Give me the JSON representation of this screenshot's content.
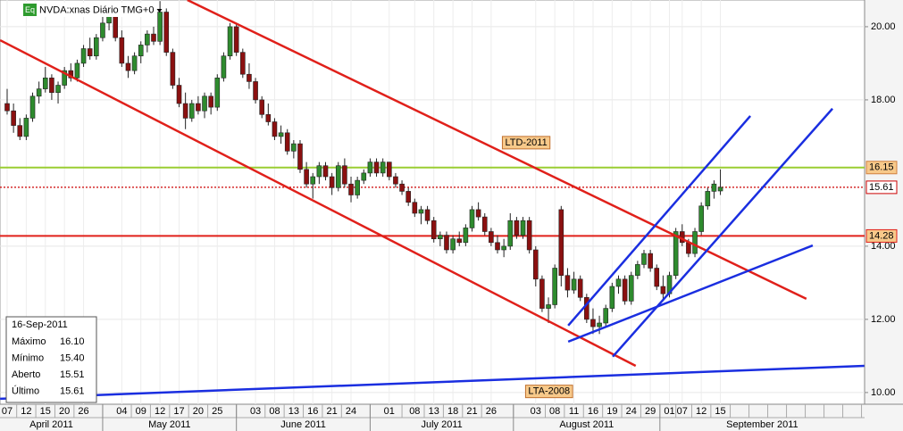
{
  "chart_data": {
    "type": "candlestick",
    "title": "NVDA:xnas Diário TMG+0",
    "badge": "Eq",
    "up_color": "#2e8b2e",
    "down_color": "#8b1010",
    "ylim": [
      9.68,
      20.73
    ],
    "yticks": [
      {
        "value": 10,
        "label": "10.00"
      },
      {
        "value": 12,
        "label": "12.00"
      },
      {
        "value": 14,
        "label": "14.00"
      },
      {
        "value": 18,
        "label": "18.00"
      },
      {
        "value": 20,
        "label": "20.00"
      }
    ],
    "grid": true,
    "categories": [
      "07",
      null,
      null,
      "12",
      null,
      null,
      "15",
      null,
      null,
      "20",
      null,
      null,
      "26",
      null,
      null,
      null,
      null,
      null,
      "04",
      null,
      null,
      "09",
      null,
      null,
      "12",
      null,
      null,
      "17",
      null,
      null,
      "20",
      null,
      null,
      "25",
      null,
      null,
      null,
      null,
      null,
      "03",
      null,
      null,
      "08",
      null,
      null,
      "13",
      null,
      null,
      "16",
      null,
      null,
      "21",
      null,
      null,
      "24",
      null,
      null,
      null,
      null,
      null,
      "01",
      null,
      null,
      null,
      "08",
      null,
      null,
      "13",
      null,
      null,
      "18",
      null,
      null,
      "21",
      null,
      null,
      "26",
      null,
      null,
      null,
      null,
      null,
      null,
      "03",
      null,
      null,
      "08",
      null,
      null,
      "11",
      null,
      null,
      "16",
      null,
      null,
      "19",
      null,
      null,
      "24",
      null,
      null,
      "29",
      null,
      null,
      "01",
      null,
      "07",
      null,
      null,
      "12",
      null,
      null,
      "15",
      null
    ],
    "months": [
      "April 2011",
      "May 2011",
      "June 2011",
      "July 2011",
      "August 2011",
      "September 2011"
    ],
    "ohlc": [
      [
        17.9,
        18.3,
        17.6,
        17.7
      ],
      [
        17.7,
        17.9,
        17.1,
        17.3
      ],
      [
        17.3,
        17.5,
        16.9,
        17.0
      ],
      [
        17.0,
        17.6,
        16.9,
        17.5
      ],
      [
        17.5,
        18.2,
        17.4,
        18.1
      ],
      [
        18.1,
        18.5,
        17.9,
        18.3
      ],
      [
        18.3,
        18.9,
        18.2,
        18.6
      ],
      [
        18.6,
        18.7,
        18.0,
        18.2
      ],
      [
        18.2,
        18.5,
        17.9,
        18.4
      ],
      [
        18.4,
        18.9,
        18.3,
        18.8
      ],
      [
        18.8,
        19.0,
        18.5,
        18.6
      ],
      [
        18.6,
        19.1,
        18.5,
        19.0
      ],
      [
        19.0,
        19.5,
        18.9,
        19.4
      ],
      [
        19.4,
        19.7,
        19.1,
        19.2
      ],
      [
        19.2,
        19.8,
        19.1,
        19.7
      ],
      [
        19.7,
        20.3,
        19.6,
        20.1
      ],
      [
        20.1,
        20.6,
        19.9,
        20.3
      ],
      [
        20.3,
        20.5,
        19.6,
        19.7
      ],
      [
        19.7,
        19.9,
        18.9,
        19.0
      ],
      [
        19.0,
        19.2,
        18.6,
        18.8
      ],
      [
        18.8,
        19.3,
        18.7,
        19.2
      ],
      [
        19.2,
        19.6,
        19.0,
        19.5
      ],
      [
        19.5,
        19.9,
        19.3,
        19.8
      ],
      [
        19.8,
        20.0,
        19.5,
        19.6
      ],
      [
        19.6,
        20.7,
        19.5,
        20.4
      ],
      [
        20.4,
        20.5,
        19.2,
        19.3
      ],
      [
        19.3,
        19.4,
        18.3,
        18.4
      ],
      [
        18.4,
        18.6,
        17.8,
        17.9
      ],
      [
        17.9,
        18.2,
        17.2,
        17.5
      ],
      [
        17.5,
        18.0,
        17.4,
        17.9
      ],
      [
        17.9,
        18.1,
        17.6,
        17.7
      ],
      [
        17.7,
        18.2,
        17.5,
        18.1
      ],
      [
        18.1,
        18.2,
        17.6,
        17.8
      ],
      [
        17.8,
        18.7,
        17.7,
        18.6
      ],
      [
        18.6,
        19.3,
        18.5,
        19.2
      ],
      [
        19.2,
        20.1,
        19.1,
        20.0
      ],
      [
        20.0,
        20.1,
        19.2,
        19.3
      ],
      [
        19.3,
        19.4,
        18.6,
        18.7
      ],
      [
        18.7,
        19.0,
        18.3,
        18.5
      ],
      [
        18.5,
        18.6,
        17.9,
        18.0
      ],
      [
        18.0,
        18.1,
        17.5,
        17.6
      ],
      [
        17.6,
        17.9,
        17.3,
        17.4
      ],
      [
        17.4,
        17.5,
        16.9,
        17.0
      ],
      [
        17.0,
        17.3,
        16.8,
        17.1
      ],
      [
        17.1,
        17.2,
        16.5,
        16.6
      ],
      [
        16.6,
        16.9,
        16.4,
        16.8
      ],
      [
        16.8,
        16.9,
        16.0,
        16.1
      ],
      [
        16.1,
        16.3,
        15.6,
        15.7
      ],
      [
        15.7,
        16.0,
        15.3,
        15.9
      ],
      [
        15.9,
        16.3,
        15.7,
        16.2
      ],
      [
        16.2,
        16.3,
        15.8,
        15.9
      ],
      [
        15.9,
        16.0,
        15.4,
        15.6
      ],
      [
        15.6,
        16.3,
        15.5,
        16.2
      ],
      [
        16.2,
        16.4,
        15.6,
        15.7
      ],
      [
        15.7,
        15.9,
        15.2,
        15.4
      ],
      [
        15.4,
        15.9,
        15.3,
        15.8
      ],
      [
        15.8,
        16.1,
        15.7,
        16.0
      ],
      [
        16.0,
        16.4,
        15.9,
        16.3
      ],
      [
        16.3,
        16.4,
        15.9,
        16.0
      ],
      [
        16.0,
        16.4,
        15.9,
        16.3
      ],
      [
        16.3,
        16.3,
        15.8,
        15.9
      ],
      [
        15.9,
        16.0,
        15.6,
        15.7
      ],
      [
        15.7,
        15.8,
        15.4,
        15.5
      ],
      [
        15.5,
        15.6,
        15.1,
        15.2
      ],
      [
        15.2,
        15.3,
        14.8,
        14.9
      ],
      [
        14.9,
        15.1,
        14.6,
        15.0
      ],
      [
        15.0,
        15.1,
        14.6,
        14.7
      ],
      [
        14.7,
        14.8,
        14.1,
        14.2
      ],
      [
        14.2,
        14.4,
        14.0,
        14.3
      ],
      [
        14.3,
        14.4,
        13.8,
        13.9
      ],
      [
        13.9,
        14.3,
        13.8,
        14.2
      ],
      [
        14.2,
        14.4,
        14.0,
        14.1
      ],
      [
        14.1,
        14.6,
        14.0,
        14.5
      ],
      [
        14.5,
        15.1,
        14.4,
        15.0
      ],
      [
        15.0,
        15.2,
        14.7,
        14.8
      ],
      [
        14.8,
        14.9,
        14.3,
        14.4
      ],
      [
        14.4,
        14.5,
        14.0,
        14.1
      ],
      [
        14.1,
        14.3,
        13.8,
        13.9
      ],
      [
        13.9,
        14.2,
        13.7,
        14.0
      ],
      [
        14.0,
        14.9,
        13.9,
        14.7
      ],
      [
        14.7,
        14.8,
        14.2,
        14.3
      ],
      [
        14.3,
        14.8,
        14.2,
        14.7
      ],
      [
        14.7,
        14.8,
        13.8,
        13.9
      ],
      [
        13.9,
        14.0,
        12.9,
        13.1
      ],
      [
        13.1,
        13.2,
        12.2,
        12.3
      ],
      [
        12.3,
        12.6,
        11.9,
        12.4
      ],
      [
        12.4,
        13.5,
        12.3,
        13.4
      ],
      [
        15.0,
        15.1,
        12.9,
        13.2
      ],
      [
        13.2,
        13.4,
        12.6,
        12.8
      ],
      [
        12.8,
        13.3,
        12.7,
        13.1
      ],
      [
        13.1,
        13.2,
        12.5,
        12.6
      ],
      [
        12.6,
        12.7,
        11.9,
        12.0
      ],
      [
        12.0,
        12.3,
        11.6,
        11.8
      ],
      [
        11.8,
        12.1,
        11.6,
        11.9
      ],
      [
        11.9,
        12.4,
        11.8,
        12.3
      ],
      [
        12.3,
        13.0,
        12.2,
        12.9
      ],
      [
        12.9,
        13.2,
        12.7,
        13.1
      ],
      [
        13.1,
        13.2,
        12.4,
        12.5
      ],
      [
        12.5,
        13.3,
        12.4,
        13.2
      ],
      [
        13.2,
        13.6,
        13.1,
        13.5
      ],
      [
        13.5,
        13.9,
        13.4,
        13.8
      ],
      [
        13.8,
        13.9,
        13.3,
        13.4
      ],
      [
        13.4,
        13.5,
        12.8,
        12.9
      ],
      [
        12.9,
        13.2,
        12.5,
        12.7
      ],
      [
        12.7,
        13.3,
        12.6,
        13.2
      ],
      [
        13.2,
        14.5,
        13.1,
        14.4
      ],
      [
        14.4,
        14.6,
        14.0,
        14.1
      ],
      [
        14.1,
        14.2,
        13.7,
        13.8
      ],
      [
        13.8,
        14.5,
        13.7,
        14.4
      ],
      [
        14.4,
        15.2,
        14.3,
        15.1
      ],
      [
        15.1,
        15.6,
        15.0,
        15.5
      ],
      [
        15.5,
        15.8,
        15.3,
        15.7
      ],
      [
        15.51,
        16.1,
        15.4,
        15.61
      ]
    ],
    "trendlines": [
      {
        "color": "#e0201a",
        "from": [
          28.3,
          20.73
        ],
        "to": [
          125.5,
          12.56
        ]
      },
      {
        "color": "#e0201a",
        "from": [
          -1.1,
          19.63
        ],
        "to": [
          98.7,
          10.73
        ]
      },
      {
        "color": "#1a2ee0",
        "from": [
          -1.1,
          9.83
        ],
        "to": [
          134.6,
          10.73
        ]
      },
      {
        "color": "#1a2ee0",
        "from": [
          88.1,
          11.83
        ],
        "to": [
          116.7,
          17.56
        ]
      },
      {
        "color": "#1a2ee0",
        "from": [
          95.1,
          10.98
        ],
        "to": [
          129.6,
          17.76
        ]
      },
      {
        "color": "#1a2ee0",
        "from": [
          88.1,
          11.39
        ],
        "to": [
          126.5,
          14.02
        ]
      }
    ],
    "levels": [
      {
        "value": 16.15,
        "color": "#9acd32",
        "style": "solid",
        "label_bg": "#f7c98a"
      },
      {
        "value": 15.61,
        "color": "#cc0000",
        "style": "dotted",
        "label_bg": "#ffffff"
      },
      {
        "value": 14.28,
        "color": "#e0201a",
        "style": "solid",
        "label_bg": "#f7c98a"
      }
    ],
    "annotations": [
      {
        "text": "LTD-2011",
        "at": [
          81.5,
          16.83
        ]
      },
      {
        "text": "LTA-2008",
        "at": [
          85.1,
          10.03
        ]
      }
    ],
    "info": {
      "date": "16-Sep-2011",
      "rows": [
        {
          "label": "Máximo",
          "value": "16.10"
        },
        {
          "label": "Mínimo",
          "value": "15.40"
        },
        {
          "label": "Aberto",
          "value": "15.51"
        },
        {
          "label": "Último",
          "value": "15.61"
        }
      ]
    }
  }
}
